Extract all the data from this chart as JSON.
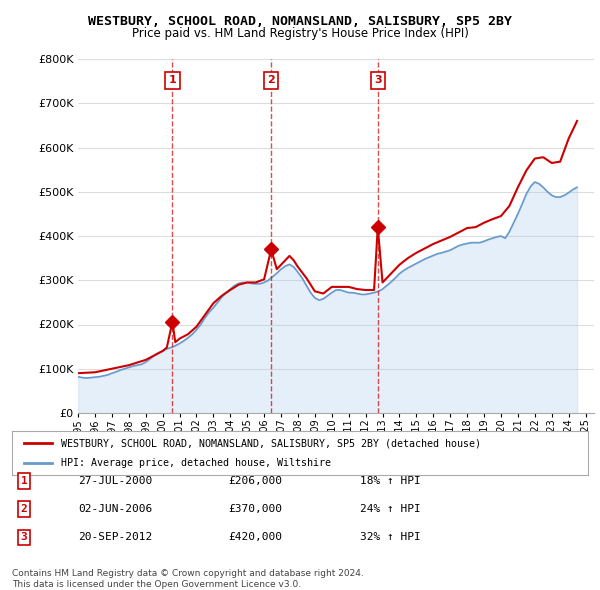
{
  "title": "WESTBURY, SCHOOL ROAD, NOMANSLAND, SALISBURY, SP5 2BY",
  "subtitle": "Price paid vs. HM Land Registry's House Price Index (HPI)",
  "ylabel_ticks": [
    "£0",
    "£100K",
    "£200K",
    "£300K",
    "£400K",
    "£500K",
    "£600K",
    "£700K",
    "£800K"
  ],
  "ytick_values": [
    0,
    100000,
    200000,
    300000,
    400000,
    500000,
    600000,
    700000,
    800000
  ],
  "ylim": [
    0,
    800000
  ],
  "xlim_start": 1995.0,
  "xlim_end": 2025.5,
  "background_color": "#ffffff",
  "grid_color": "#dddddd",
  "sale_color": "#cc0000",
  "hpi_color": "#aaccee",
  "hpi_line_color": "#6699cc",
  "transaction_line_color": "#cc0000",
  "transaction_line_alpha": 0.5,
  "legend_label_sale": "WESTBURY, SCHOOL ROAD, NOMANSLAND, SALISBURY, SP5 2BY (detached house)",
  "legend_label_hpi": "HPI: Average price, detached house, Wiltshire",
  "transactions": [
    {
      "num": 1,
      "date_str": "27-JUL-2000",
      "price": 206000,
      "pct": "18%",
      "x": 2000.58
    },
    {
      "num": 2,
      "date_str": "02-JUN-2006",
      "price": 370000,
      "pct": "24%",
      "x": 2006.42
    },
    {
      "num": 3,
      "date_str": "20-SEP-2012",
      "price": 420000,
      "pct": "32%",
      "x": 2012.72
    }
  ],
  "footnote1": "Contains HM Land Registry data © Crown copyright and database right 2024.",
  "footnote2": "This data is licensed under the Open Government Licence v3.0.",
  "hpi_data": {
    "x": [
      1995.0,
      1995.25,
      1995.5,
      1995.75,
      1996.0,
      1996.25,
      1996.5,
      1996.75,
      1997.0,
      1997.25,
      1997.5,
      1997.75,
      1998.0,
      1998.25,
      1998.5,
      1998.75,
      1999.0,
      1999.25,
      1999.5,
      1999.75,
      2000.0,
      2000.25,
      2000.5,
      2000.75,
      2001.0,
      2001.25,
      2001.5,
      2001.75,
      2002.0,
      2002.25,
      2002.5,
      2002.75,
      2003.0,
      2003.25,
      2003.5,
      2003.75,
      2004.0,
      2004.25,
      2004.5,
      2004.75,
      2005.0,
      2005.25,
      2005.5,
      2005.75,
      2006.0,
      2006.25,
      2006.5,
      2006.75,
      2007.0,
      2007.25,
      2007.5,
      2007.75,
      2008.0,
      2008.25,
      2008.5,
      2008.75,
      2009.0,
      2009.25,
      2009.5,
      2009.75,
      2010.0,
      2010.25,
      2010.5,
      2010.75,
      2011.0,
      2011.25,
      2011.5,
      2011.75,
      2012.0,
      2012.25,
      2012.5,
      2012.75,
      2013.0,
      2013.25,
      2013.5,
      2013.75,
      2014.0,
      2014.25,
      2014.5,
      2014.75,
      2015.0,
      2015.25,
      2015.5,
      2015.75,
      2016.0,
      2016.25,
      2016.5,
      2016.75,
      2017.0,
      2017.25,
      2017.5,
      2017.75,
      2018.0,
      2018.25,
      2018.5,
      2018.75,
      2019.0,
      2019.25,
      2019.5,
      2019.75,
      2020.0,
      2020.25,
      2020.5,
      2020.75,
      2021.0,
      2021.25,
      2021.5,
      2021.75,
      2022.0,
      2022.25,
      2022.5,
      2022.75,
      2023.0,
      2023.25,
      2023.5,
      2023.75,
      2024.0,
      2024.25,
      2024.5
    ],
    "y": [
      82000,
      80000,
      79000,
      80000,
      81000,
      82000,
      84000,
      86000,
      90000,
      93000,
      97000,
      100000,
      103000,
      106000,
      108000,
      110000,
      115000,
      122000,
      130000,
      136000,
      140000,
      145000,
      148000,
      152000,
      157000,
      163000,
      170000,
      178000,
      188000,
      200000,
      215000,
      228000,
      238000,
      250000,
      262000,
      272000,
      280000,
      288000,
      293000,
      295000,
      295000,
      293000,
      292000,
      292000,
      295000,
      300000,
      308000,
      316000,
      325000,
      332000,
      336000,
      330000,
      318000,
      305000,
      288000,
      272000,
      260000,
      255000,
      258000,
      265000,
      272000,
      278000,
      278000,
      275000,
      272000,
      272000,
      270000,
      268000,
      268000,
      270000,
      272000,
      275000,
      280000,
      288000,
      296000,
      305000,
      315000,
      322000,
      328000,
      333000,
      338000,
      343000,
      348000,
      352000,
      356000,
      360000,
      362000,
      365000,
      368000,
      373000,
      378000,
      381000,
      383000,
      385000,
      385000,
      385000,
      388000,
      392000,
      395000,
      398000,
      400000,
      395000,
      410000,
      430000,
      450000,
      472000,
      495000,
      512000,
      522000,
      518000,
      510000,
      500000,
      492000,
      488000,
      488000,
      492000,
      498000,
      505000,
      510000
    ]
  },
  "sale_data": {
    "x": [
      1995.0,
      1996.0,
      1997.0,
      1998.0,
      1999.0,
      2000.0,
      2000.25,
      2000.58,
      2000.75,
      2001.0,
      2001.5,
      2002.0,
      2003.0,
      2003.5,
      2004.0,
      2004.5,
      2005.0,
      2005.5,
      2006.0,
      2006.42,
      2006.75,
      2007.0,
      2007.25,
      2007.5,
      2007.75,
      2008.0,
      2008.5,
      2009.0,
      2009.5,
      2010.0,
      2010.5,
      2011.0,
      2011.5,
      2012.0,
      2012.5,
      2012.72,
      2013.0,
      2013.5,
      2014.0,
      2014.5,
      2015.0,
      2015.5,
      2016.0,
      2016.5,
      2017.0,
      2017.5,
      2018.0,
      2018.5,
      2019.0,
      2019.5,
      2020.0,
      2020.5,
      2021.0,
      2021.5,
      2022.0,
      2022.5,
      2023.0,
      2023.5,
      2024.0,
      2024.5
    ],
    "y": [
      90000,
      92000,
      100000,
      108000,
      120000,
      140000,
      148000,
      206000,
      160000,
      168000,
      178000,
      195000,
      248000,
      265000,
      278000,
      290000,
      295000,
      295000,
      302000,
      370000,
      325000,
      335000,
      345000,
      355000,
      345000,
      330000,
      305000,
      275000,
      270000,
      285000,
      285000,
      285000,
      280000,
      278000,
      278000,
      420000,
      295000,
      315000,
      335000,
      350000,
      362000,
      372000,
      382000,
      390000,
      398000,
      408000,
      418000,
      420000,
      430000,
      438000,
      445000,
      468000,
      510000,
      548000,
      575000,
      578000,
      565000,
      568000,
      620000,
      660000
    ]
  }
}
